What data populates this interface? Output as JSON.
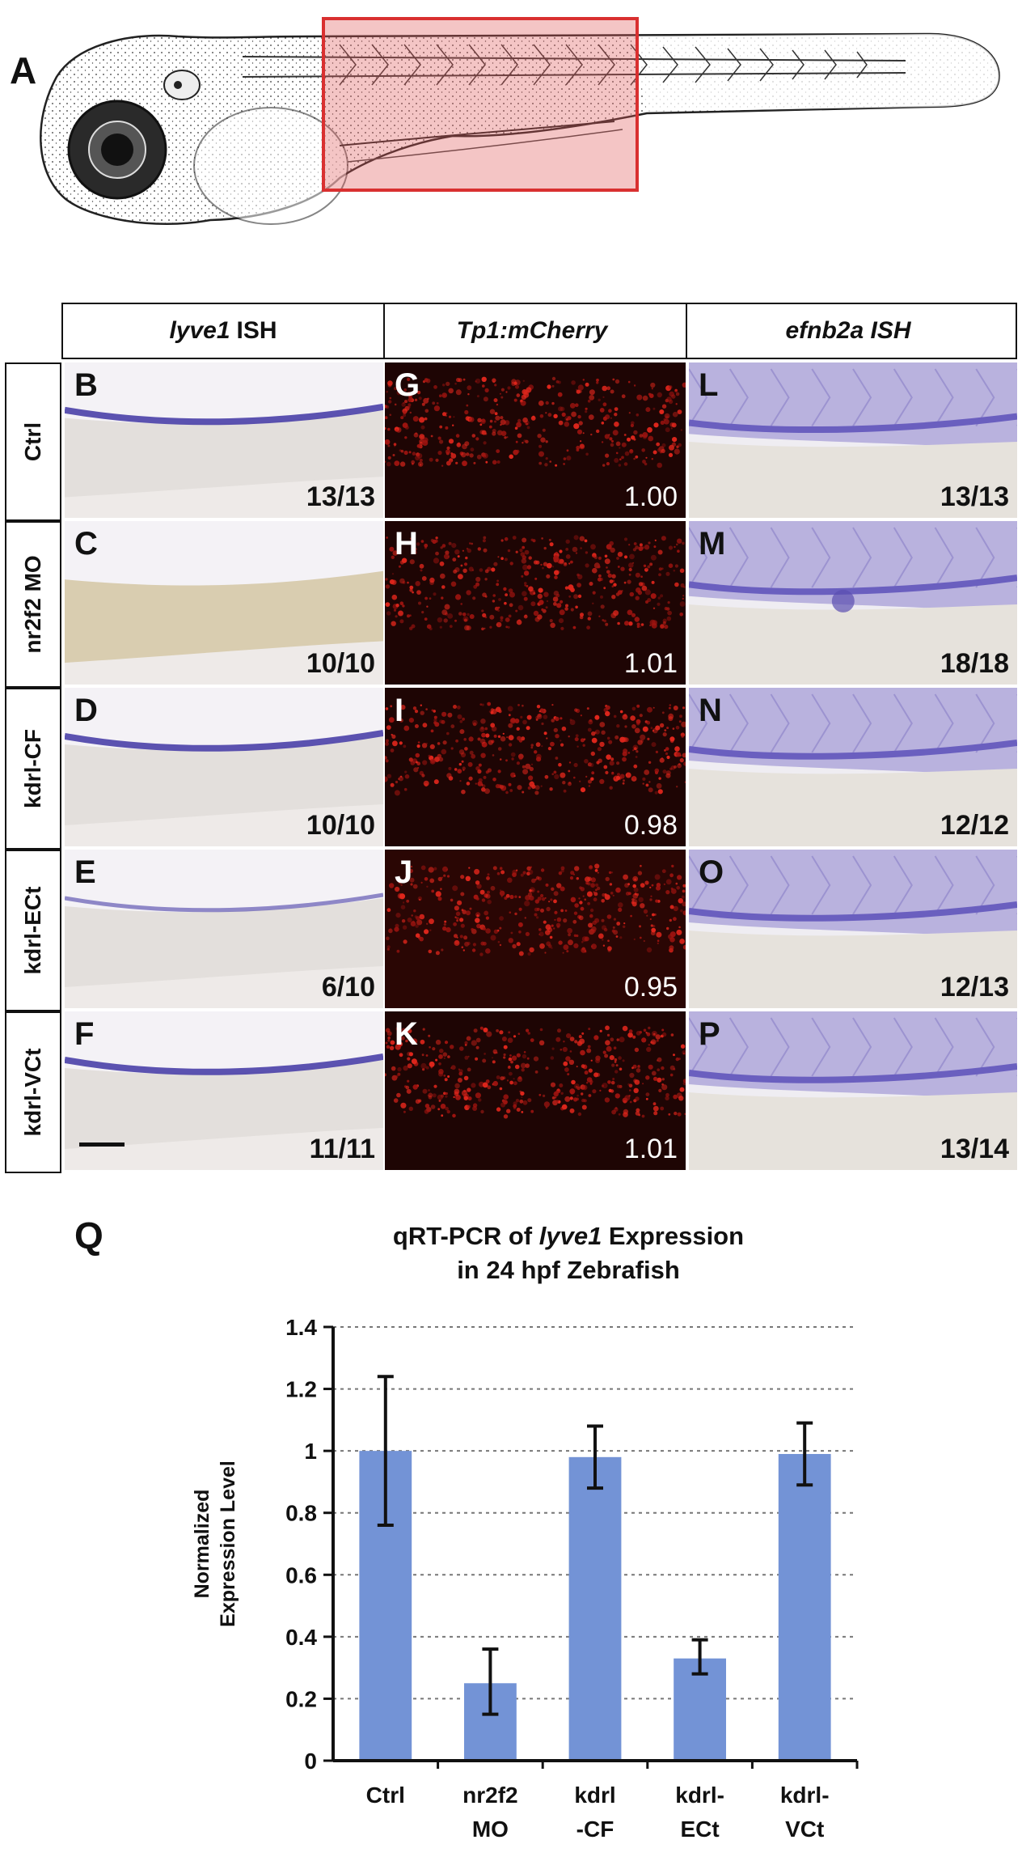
{
  "figure": {
    "panel_a_letter": "A",
    "panel_q_letter": "Q",
    "column_headers": [
      {
        "italic": "lyve1",
        "rest": "ISH"
      },
      {
        "italic": "Tp1:mCherry",
        "rest": ""
      },
      {
        "italic": "efnb2a ISH",
        "rest": ""
      }
    ],
    "row_labels": [
      "Ctrl",
      "nr2f2 MO",
      "kdrl-CF",
      "kdrl-ECt",
      "kdrl-VCt"
    ],
    "lyve1_panels": [
      {
        "letter": "B",
        "count": "13/13"
      },
      {
        "letter": "C",
        "count": "10/10"
      },
      {
        "letter": "D",
        "count": "10/10"
      },
      {
        "letter": "E",
        "count": "6/10"
      },
      {
        "letter": "F",
        "count": "11/11"
      }
    ],
    "mcherry_panels": [
      {
        "letter": "G",
        "value": "1.00"
      },
      {
        "letter": "H",
        "value": "1.01"
      },
      {
        "letter": "I",
        "value": "0.98"
      },
      {
        "letter": "J",
        "value": "0.95"
      },
      {
        "letter": "K",
        "value": "1.01"
      }
    ],
    "efnb2a_panels": [
      {
        "letter": "L",
        "count": "13/13"
      },
      {
        "letter": "M",
        "count": "18/18"
      },
      {
        "letter": "N",
        "count": "12/12"
      },
      {
        "letter": "O",
        "count": "12/13"
      },
      {
        "letter": "P",
        "count": "13/14"
      }
    ]
  },
  "chart_data": {
    "type": "bar",
    "title_line1_prefix": "qRT-PCR of ",
    "title_line1_italic": "lyve1",
    "title_line1_suffix": " Expression",
    "title_line2": "in 24 hpf Zebrafish",
    "ylabel_line1": "Normalized",
    "ylabel_line2": "Expression Level",
    "categories": [
      [
        "Ctrl"
      ],
      [
        "nr2f2",
        "MO"
      ],
      [
        "kdrl",
        "-CF"
      ],
      [
        "kdrl-",
        "ECt"
      ],
      [
        "kdrl-",
        "VCt"
      ]
    ],
    "values": [
      1.0,
      0.25,
      0.98,
      0.33,
      0.99
    ],
    "error_low": [
      0.76,
      0.15,
      0.88,
      0.28,
      0.89
    ],
    "error_high": [
      1.24,
      0.36,
      1.08,
      0.39,
      1.09
    ],
    "yticks": [
      "0",
      "0.2",
      "0.4",
      "0.6",
      "0.8",
      "1",
      "1.2",
      "1.4"
    ],
    "ylim": [
      0,
      1.4
    ],
    "grid": true,
    "bar_color": "#7393d6"
  }
}
